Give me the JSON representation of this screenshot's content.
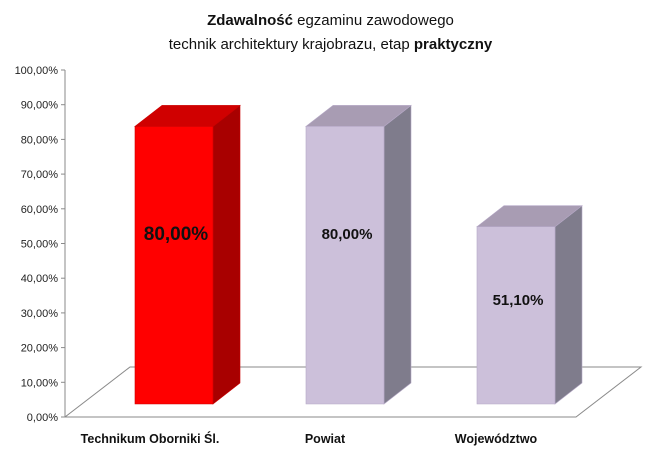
{
  "chart_data": {
    "type": "bar",
    "title_line1_bold": "Zdawalność",
    "title_line1_rest": " egzaminu zawodowego",
    "title_line2_rest": "technik architektury  krajobrazu, etap ",
    "title_line2_bold": "praktyczny",
    "categories": [
      "Technikum Oborniki Śl.",
      "Powiat",
      "Województwo"
    ],
    "values": [
      80.0,
      80.0,
      51.1
    ],
    "data_labels": [
      "80,00%",
      "80,00%",
      "51,10%"
    ],
    "y_ticks": [
      "0,00%",
      "10,00%",
      "20,00%",
      "30,00%",
      "40,00%",
      "50,00%",
      "60,00%",
      "70,00%",
      "80,00%",
      "90,00%",
      "100,00%"
    ],
    "ylim": [
      0,
      100
    ],
    "grid": false,
    "bar_colors": [
      {
        "front": "#ff0000",
        "side": "#a80000",
        "top": "#d00000",
        "edge": "#cc0000"
      },
      {
        "front": "#ccc0da",
        "side": "#7f7c8c",
        "top": "#a89cb3",
        "edge": "#b5a8c6"
      },
      {
        "front": "#ccc0da",
        "side": "#7f7c8c",
        "top": "#a89cb3",
        "edge": "#b5a8c6"
      }
    ]
  }
}
